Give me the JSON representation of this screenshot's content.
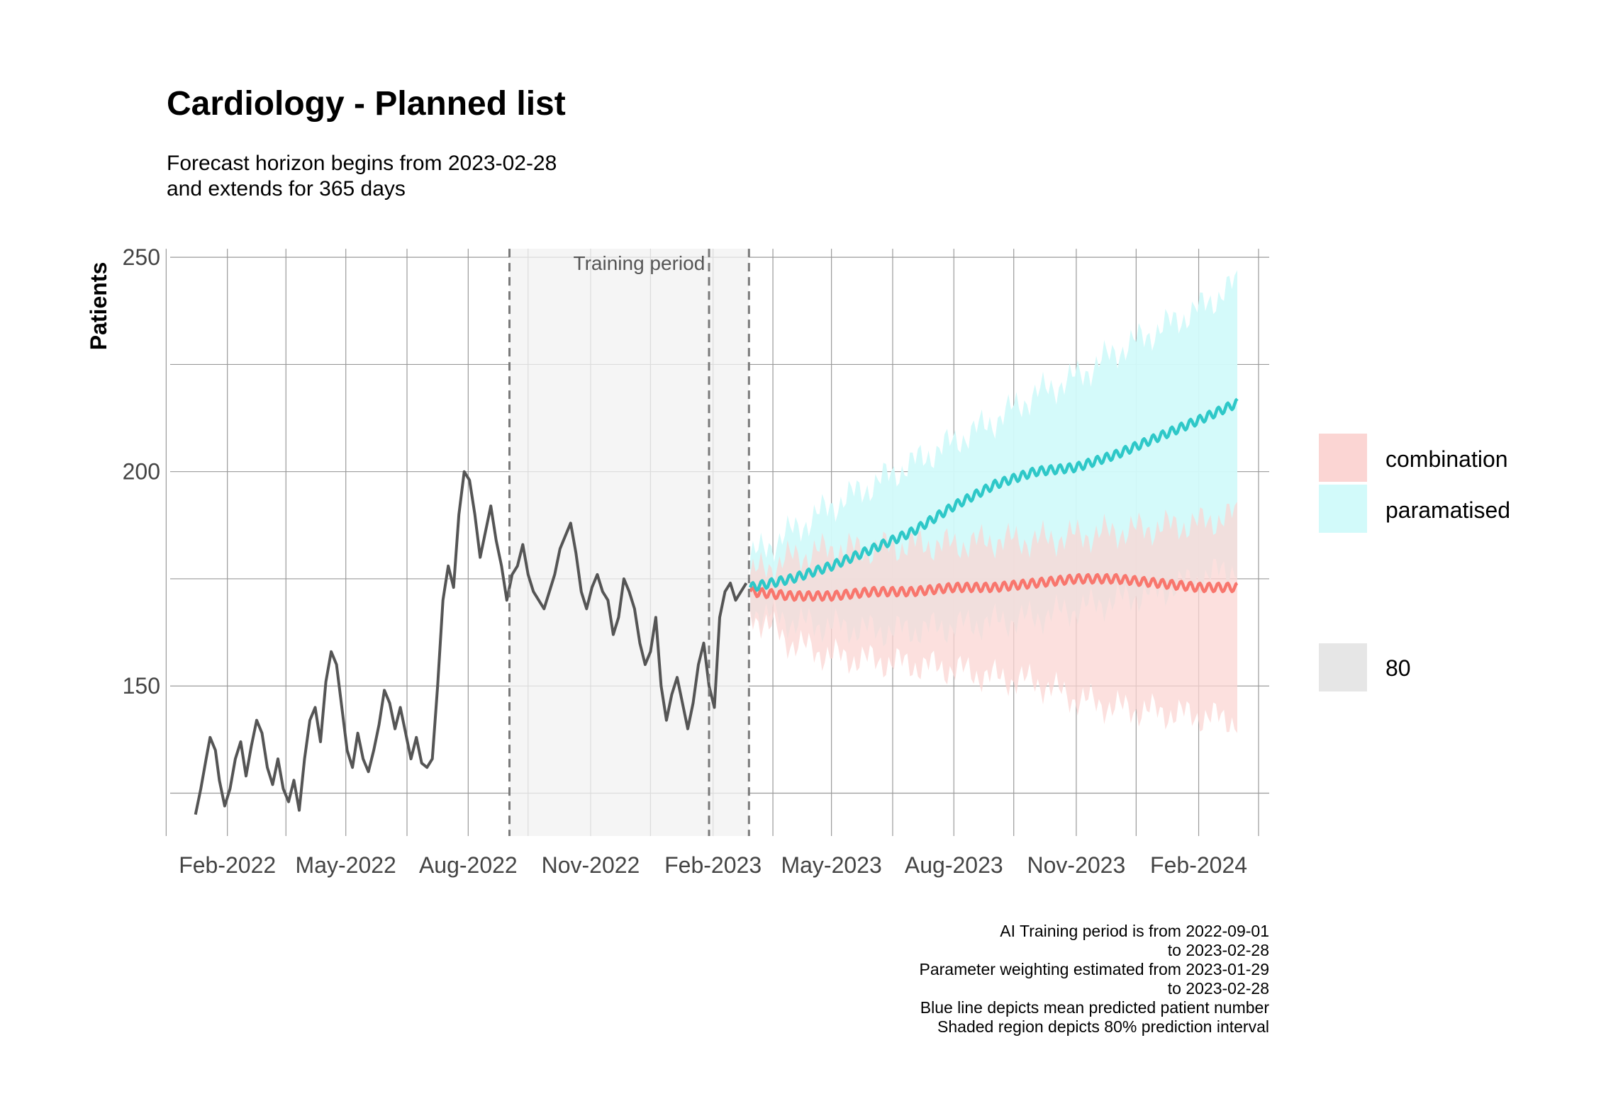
{
  "chart_data": {
    "type": "line",
    "title": "Cardiology - Planned list",
    "subtitle": [
      "Forecast horizon begins from 2023-02-28",
      "and extends for 365 days"
    ],
    "xlabel": "",
    "ylabel": "Patients",
    "ylim": [
      115,
      253
    ],
    "xlim": [
      "2021-12-20",
      "2024-03-25"
    ],
    "y_ticks": [
      150,
      200,
      250
    ],
    "y_minor_ticks": [
      125,
      175,
      225
    ],
    "x_ticks": [
      {
        "date": "2022-02-01",
        "label": "Feb-2022"
      },
      {
        "date": "2022-05-01",
        "label": "May-2022"
      },
      {
        "date": "2022-08-01",
        "label": "Aug-2022"
      },
      {
        "date": "2022-11-01",
        "label": "Nov-2022"
      },
      {
        "date": "2023-02-01",
        "label": "Feb-2023"
      },
      {
        "date": "2023-05-01",
        "label": "May-2023"
      },
      {
        "date": "2023-08-01",
        "label": "Aug-2023"
      },
      {
        "date": "2023-11-01",
        "label": "Nov-2023"
      },
      {
        "date": "2024-02-01",
        "label": "Feb-2024"
      }
    ],
    "x_minor_ticks": [
      "2021-12-17",
      "2022-03-17",
      "2022-06-16",
      "2022-09-15",
      "2022-12-16",
      "2023-03-18",
      "2023-06-16",
      "2023-09-15",
      "2023-12-16",
      "2024-03-17"
    ],
    "grid": true,
    "training_period": {
      "label": "Training period",
      "start": "2022-09-01",
      "end": "2023-02-28",
      "weighting_start": "2023-01-29"
    },
    "legend": {
      "position": "right",
      "series": [
        {
          "name": "combination",
          "color": "#F8766D",
          "fill": "#FBD5D3"
        },
        {
          "name": "paramatised",
          "color": "#2EC8C8",
          "fill": "#D2FAFA"
        }
      ],
      "interval": {
        "name": "80",
        "fill": "#E6E6E6"
      }
    },
    "series": [
      {
        "name": "observed",
        "color": "#555555",
        "x": [
          "2022-01-08",
          "2022-01-12",
          "2022-01-16",
          "2022-01-19",
          "2022-01-23",
          "2022-01-26",
          "2022-01-30",
          "2022-02-03",
          "2022-02-07",
          "2022-02-11",
          "2022-02-15",
          "2022-02-19",
          "2022-02-23",
          "2022-02-27",
          "2022-03-03",
          "2022-03-07",
          "2022-03-11",
          "2022-03-15",
          "2022-03-19",
          "2022-03-23",
          "2022-03-27",
          "2022-03-31",
          "2022-04-04",
          "2022-04-08",
          "2022-04-12",
          "2022-04-16",
          "2022-04-20",
          "2022-04-24",
          "2022-04-28",
          "2022-05-02",
          "2022-05-06",
          "2022-05-10",
          "2022-05-14",
          "2022-05-18",
          "2022-05-22",
          "2022-05-26",
          "2022-05-30",
          "2022-06-03",
          "2022-06-07",
          "2022-06-11",
          "2022-06-15",
          "2022-06-19",
          "2022-06-23",
          "2022-06-27",
          "2022-07-01",
          "2022-07-05",
          "2022-07-09",
          "2022-07-13",
          "2022-07-17",
          "2022-07-21",
          "2022-07-25",
          "2022-07-29",
          "2022-08-02",
          "2022-08-06",
          "2022-08-10",
          "2022-08-14",
          "2022-08-18",
          "2022-08-22",
          "2022-08-26",
          "2022-08-30",
          "2022-09-03",
          "2022-09-07",
          "2022-09-11",
          "2022-09-15",
          "2022-09-19",
          "2022-09-23",
          "2022-09-27",
          "2022-10-01",
          "2022-10-05",
          "2022-10-09",
          "2022-10-13",
          "2022-10-17",
          "2022-10-21",
          "2022-10-25",
          "2022-10-29",
          "2022-11-02",
          "2022-11-06",
          "2022-11-10",
          "2022-11-14",
          "2022-11-18",
          "2022-11-22",
          "2022-11-26",
          "2022-11-30",
          "2022-12-04",
          "2022-12-08",
          "2022-12-12",
          "2022-12-16",
          "2022-12-20",
          "2022-12-24",
          "2022-12-28",
          "2023-01-01",
          "2023-01-05",
          "2023-01-09",
          "2023-01-13",
          "2023-01-17",
          "2023-01-21",
          "2023-01-25",
          "2023-01-29",
          "2023-02-02",
          "2023-02-06",
          "2023-02-10",
          "2023-02-14",
          "2023-02-18",
          "2023-02-22",
          "2023-02-26"
        ],
        "values": [
          120,
          126,
          133,
          138,
          135,
          128,
          122,
          126,
          133,
          137,
          129,
          136,
          142,
          139,
          131,
          127,
          133,
          126,
          123,
          128,
          121,
          133,
          142,
          145,
          137,
          151,
          158,
          155,
          145,
          135,
          131,
          139,
          133,
          130,
          135,
          141,
          149,
          146,
          140,
          145,
          139,
          133,
          138,
          132,
          131,
          133,
          150,
          170,
          178,
          173,
          190,
          200,
          198,
          190,
          180,
          186,
          192,
          184,
          178,
          170,
          176,
          178,
          183,
          176,
          172,
          170,
          168,
          172,
          176,
          182,
          185,
          188,
          181,
          172,
          168,
          173,
          176,
          172,
          170,
          162,
          166,
          175,
          172,
          168,
          160,
          155,
          158,
          166,
          150,
          142,
          148,
          152,
          146,
          140,
          146,
          155,
          160,
          150,
          145,
          166,
          172,
          174,
          170,
          172,
          174
        ]
      },
      {
        "name": "paramatised",
        "color": "#2EC8C8",
        "x": [
          "2023-03-01",
          "2023-04-01",
          "2023-05-01",
          "2023-06-01",
          "2023-07-01",
          "2023-08-01",
          "2023-09-01",
          "2023-10-01",
          "2023-11-01",
          "2023-12-01",
          "2024-01-01",
          "2024-02-01",
          "2024-03-01"
        ],
        "values": [
          173,
          175,
          178,
          182,
          186,
          192,
          197,
          200,
          201,
          204,
          208,
          212,
          216
        ],
        "lower": [
          168,
          165,
          164,
          163,
          163,
          164,
          165,
          166,
          168,
          170,
          172,
          175,
          178
        ],
        "upper": [
          180,
          186,
          192,
          197,
          202,
          207,
          212,
          218,
          222,
          228,
          233,
          238,
          244
        ]
      },
      {
        "name": "combination",
        "color": "#F8766D",
        "x": [
          "2023-03-01",
          "2023-04-01",
          "2023-05-01",
          "2023-06-01",
          "2023-07-01",
          "2023-08-01",
          "2023-09-01",
          "2023-10-01",
          "2023-11-01",
          "2023-12-01",
          "2024-01-01",
          "2024-02-01",
          "2024-03-01"
        ],
        "values": [
          172,
          171,
          171,
          172,
          172,
          173,
          173,
          174,
          175,
          175,
          174,
          173,
          173
        ],
        "lower": [
          167,
          160,
          157,
          156,
          155,
          154,
          152,
          151,
          147,
          145,
          144,
          143,
          142
        ],
        "upper": [
          176,
          180,
          182,
          182,
          183,
          183,
          184,
          184,
          185,
          186,
          187,
          188,
          190
        ]
      }
    ],
    "caption": [
      "AI Training period is from 2022-09-01",
      "to 2023-02-28",
      "Parameter weighting estimated from 2023-01-29",
      "to 2023-02-28",
      "Blue line depicts mean predicted patient number",
      "Shaded region depicts 80% prediction interval"
    ]
  }
}
